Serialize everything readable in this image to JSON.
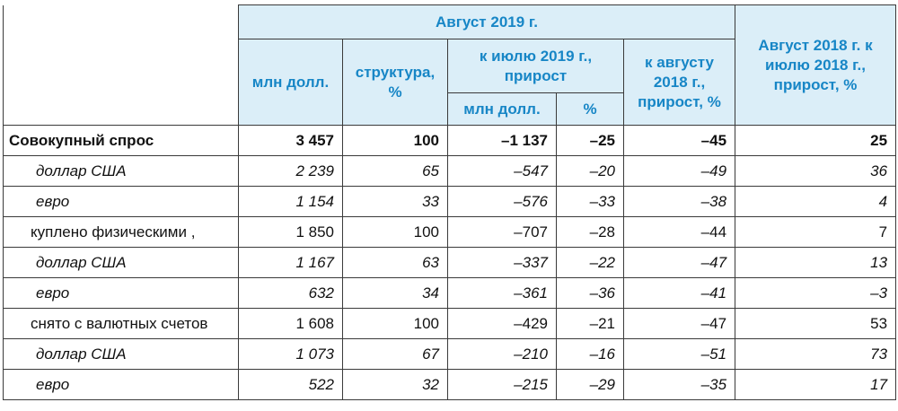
{
  "header": {
    "group_title": "Август 2019 г.",
    "col_mln": "млн долл.",
    "col_structure": "структура, %",
    "col_to_july": "к июлю 2019 г., прирост",
    "col_to_july_mln": "млн долл.",
    "col_to_july_pct": "%",
    "col_to_aug": "к августу 2018 г., прирост, %",
    "col_2018": "Август 2018 г. к июлю 2018 г., прирост, %"
  },
  "rows": [
    {
      "label": "Совокупный спрос",
      "mln": "3 457",
      "structure": "100",
      "july_mln": "–1 137",
      "july_pct": "–25",
      "aug_pct": "–45",
      "y2018": "25"
    },
    {
      "label": "доллар США",
      "mln": "2 239",
      "structure": "65",
      "july_mln": "–547",
      "july_pct": "–20",
      "aug_pct": "–49",
      "y2018": "36"
    },
    {
      "label": "евро",
      "mln": "1 154",
      "structure": "33",
      "july_mln": "–576",
      "july_pct": "–33",
      "aug_pct": "–38",
      "y2018": "4"
    },
    {
      "label": "куплено физическими ,",
      "mln": "1 850",
      "structure": "100",
      "july_mln": "–707",
      "july_pct": "–28",
      "aug_pct": "–44",
      "y2018": "7"
    },
    {
      "label": "доллар США",
      "mln": "1 167",
      "structure": "63",
      "july_mln": "–337",
      "july_pct": "–22",
      "aug_pct": "–47",
      "y2018": "13"
    },
    {
      "label": "евро",
      "mln": "632",
      "structure": "34",
      "july_mln": "–361",
      "july_pct": "–36",
      "aug_pct": "–41",
      "y2018": "–3"
    },
    {
      "label": "снято с валютных счетов",
      "mln": "1 608",
      "structure": "100",
      "july_mln": "–429",
      "july_pct": "–21",
      "aug_pct": "–47",
      "y2018": "53"
    },
    {
      "label": "доллар США",
      "mln": "1 073",
      "structure": "67",
      "july_mln": "–210",
      "july_pct": "–16",
      "aug_pct": "–51",
      "y2018": "73"
    },
    {
      "label": "евро",
      "mln": "522",
      "structure": "32",
      "july_mln": "–215",
      "july_pct": "–29",
      "aug_pct": "–35",
      "y2018": "17"
    }
  ]
}
